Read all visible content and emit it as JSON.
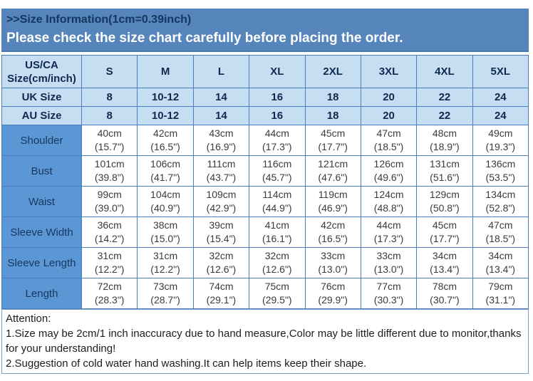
{
  "banner": {
    "title": ">>Size Information(1cm=0.39inch)",
    "notice": "Please check the size chart carefully before placing the order."
  },
  "colors": {
    "banner_blue": "#5585bb",
    "header_light_blue": "#c6def2",
    "label_blue": "#5b97d5",
    "border_blue": "#4a7ebd",
    "text_navy": "#17375d"
  },
  "table": {
    "corner": "US/CA\nSize(cm/inch)",
    "sizes": [
      "S",
      "M",
      "L",
      "XL",
      "2XL",
      "3XL",
      "4XL",
      "5XL"
    ],
    "rows": [
      {
        "label": "UK Size",
        "values": [
          "8",
          "10-12",
          "14",
          "16",
          "18",
          "20",
          "22",
          "24"
        ]
      },
      {
        "label": "AU Size",
        "values": [
          "8",
          "10-12",
          "14",
          "16",
          "18",
          "20",
          "22",
          "24"
        ]
      }
    ],
    "measurements": [
      {
        "label": "Shoulder",
        "values": [
          "40cm\n(15.7\")",
          "42cm\n(16.5\")",
          "43cm\n(16.9\")",
          "44cm\n(17.3\")",
          "45cm\n(17.7\")",
          "47cm\n(18.5\")",
          "48cm\n(18.9\")",
          "49cm\n(19.3\")"
        ]
      },
      {
        "label": "Bust",
        "values": [
          "101cm\n(39.8\")",
          "106cm\n(41.7\")",
          "111cm\n(43.7\")",
          "116cm\n(45.7\")",
          "121cm\n(47.6\")",
          "126cm\n(49.6\")",
          "131cm\n(51.6\")",
          "136cm\n(53.5\")"
        ]
      },
      {
        "label": "Waist",
        "values": [
          "99cm\n(39.0\")",
          "104cm\n(40.9\")",
          "109cm\n(42.9\")",
          "114cm\n(44.9\")",
          "119cm\n(46.9\")",
          "124cm\n(48.8\")",
          "129cm\n(50.8\")",
          "134cm\n(52.8\")"
        ]
      },
      {
        "label": "Sleeve Width",
        "values": [
          "36cm\n(14.2\")",
          "38cm\n(15.0\")",
          "39cm\n(15.4\")",
          "41cm\n(16.1\")",
          "42cm\n(16.5\")",
          "44cm\n(17.3\")",
          "45cm\n(17.7\")",
          "47cm\n(18.5\")"
        ]
      },
      {
        "label": "Sleeve Length",
        "values": [
          "31cm\n(12.2\")",
          "31cm\n(12.2\")",
          "32cm\n(12.6\")",
          "32cm\n(12.6\")",
          "33cm\n(13.0\")",
          "33cm\n(13.0\")",
          "34cm\n(13.4\")",
          "34cm\n(13.4\")"
        ]
      },
      {
        "label": "Length",
        "values": [
          "72cm\n(28.3\")",
          "73cm\n(28.7\")",
          "74cm\n(29.1\")",
          "75cm\n(29.5\")",
          "76cm\n(29.9\")",
          "77cm\n(30.3\")",
          "78cm\n(30.7\")",
          "79cm\n(31.1\")"
        ]
      }
    ]
  },
  "attention": {
    "title": "Attention:",
    "items": [
      "1.Size may be 2cm/1 inch inaccuracy due to hand measure,Color may be little different due to monitor,thanks for your understanding!",
      "2.Suggestion of cold water hand washing.It can help items keep their shape."
    ]
  }
}
